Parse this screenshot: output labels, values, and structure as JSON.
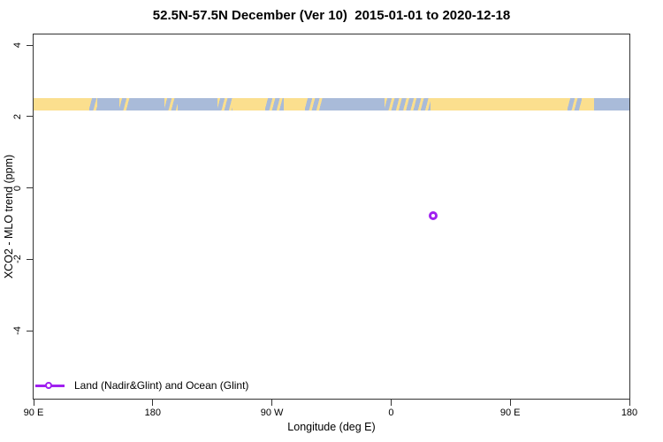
{
  "title": "52.5N-57.5N December (Ver 10)  2015-01-01 to 2020-12-18",
  "colors": {
    "land": "#FBDF8E",
    "ocean": "#A9BBD9",
    "series": "#A020F0",
    "axis": "#333333"
  },
  "legend": {
    "label": "Land (Nadir&Glint) and Ocean (Glint)"
  },
  "chart_data": {
    "type": "scatter",
    "title": "52.5N-57.5N December (Ver 10)  2015-01-01 to 2020-12-18",
    "xlabel": "Longitude (deg E)",
    "ylabel": "XCO2 - MLO trend (ppm)",
    "grid": false,
    "legend_position": "bottom-left-inside",
    "x_axis": {
      "min": 90,
      "max": 540,
      "note": "longitude axis wraps eastward: 90E -> 180 -> 90W -> 0 -> 90E -> 180",
      "ticks": [
        {
          "v": 90,
          "label": "90 E"
        },
        {
          "v": 180,
          "label": "180"
        },
        {
          "v": 270,
          "label": "90 W"
        },
        {
          "v": 360,
          "label": "0"
        },
        {
          "v": 450,
          "label": "90 E"
        },
        {
          "v": 540,
          "label": "180"
        }
      ]
    },
    "y_axis": {
      "min": -5.9,
      "max": 4.3,
      "ticks": [
        {
          "v": 4,
          "label": "4"
        },
        {
          "v": 2,
          "label": "2"
        },
        {
          "v": 0,
          "label": "0"
        },
        {
          "v": -2,
          "label": "-2"
        },
        {
          "v": -4,
          "label": "-4"
        }
      ]
    },
    "series": [
      {
        "name": "Land (Nadir&Glint) and Ocean (Glint)",
        "color": "#A020F0",
        "marker": "open-circle",
        "points": [
          {
            "x": 392,
            "y": -0.78,
            "longitude": "32 E",
            "value_ppm": -0.78
          }
        ]
      }
    ],
    "map_strip": {
      "description": "land/ocean strip for latitude band 52.5N-57.5N drawn across the plot",
      "y_from": 2.18,
      "y_to": 2.51,
      "land_color": "#FBDF8E",
      "ocean_color": "#A9BBD9",
      "segments": [
        {
          "from": 90,
          "to": 132,
          "type": "land"
        },
        {
          "from": 132,
          "to": 138,
          "type": "mixed"
        },
        {
          "from": 138,
          "to": 155,
          "type": "ocean"
        },
        {
          "from": 155,
          "to": 163,
          "type": "mixed"
        },
        {
          "from": 163,
          "to": 189,
          "type": "ocean"
        },
        {
          "from": 189,
          "to": 199,
          "type": "mixed"
        },
        {
          "from": 199,
          "to": 229,
          "type": "ocean"
        },
        {
          "from": 229,
          "to": 240,
          "type": "mixed"
        },
        {
          "from": 240,
          "to": 265,
          "type": "land"
        },
        {
          "from": 265,
          "to": 279,
          "type": "mixed"
        },
        {
          "from": 279,
          "to": 295,
          "type": "land"
        },
        {
          "from": 295,
          "to": 309,
          "type": "mixed"
        },
        {
          "from": 309,
          "to": 355,
          "type": "ocean"
        },
        {
          "from": 355,
          "to": 390,
          "type": "mixed"
        },
        {
          "from": 390,
          "to": 493,
          "type": "land"
        },
        {
          "from": 493,
          "to": 504,
          "type": "mixed"
        },
        {
          "from": 504,
          "to": 513,
          "type": "land"
        },
        {
          "from": 513,
          "to": 540,
          "type": "ocean"
        }
      ]
    }
  }
}
